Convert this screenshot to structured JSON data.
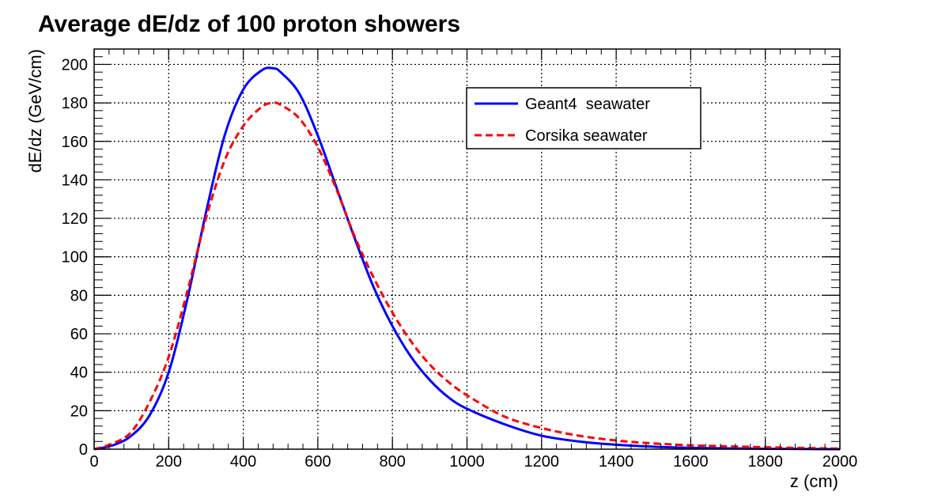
{
  "chart_data": {
    "type": "line",
    "title": "Average dE/dz of 100 proton showers",
    "xlabel": "z (cm)",
    "ylabel": "dE/dz (GeV/cm)",
    "xlim": [
      0,
      2000
    ],
    "ylim": [
      0,
      208
    ],
    "xticks": [
      0,
      200,
      400,
      600,
      800,
      1000,
      1200,
      1400,
      1600,
      1800,
      2000
    ],
    "yticks": [
      0,
      20,
      40,
      60,
      80,
      100,
      120,
      140,
      160,
      180,
      200
    ],
    "grid": true,
    "legend_position": "top-right",
    "series": [
      {
        "name": "Geant4  seawater",
        "color": "#0000ff",
        "style": "solid",
        "x": [
          0,
          50,
          100,
          150,
          200,
          250,
          300,
          350,
          400,
          450,
          480,
          500,
          550,
          600,
          650,
          700,
          750,
          800,
          850,
          900,
          950,
          1000,
          1100,
          1200,
          1300,
          1400,
          1500,
          1600,
          1700,
          1800,
          1900,
          2000
        ],
        "y": [
          0,
          2,
          7,
          18,
          40,
          78,
          123,
          163,
          187,
          197,
          198,
          196,
          185,
          163,
          136,
          109,
          84,
          64,
          48,
          36,
          27,
          21,
          13,
          7,
          4,
          2.3,
          1.3,
          0.7,
          0.4,
          0.2,
          0.1,
          0
        ]
      },
      {
        "name": "Corsika seawater",
        "color": "#ff0000",
        "style": "dashed",
        "x": [
          0,
          50,
          100,
          150,
          200,
          250,
          300,
          350,
          400,
          450,
          480,
          500,
          550,
          600,
          650,
          700,
          750,
          800,
          850,
          900,
          950,
          1000,
          1100,
          1200,
          1300,
          1400,
          1500,
          1600,
          1700,
          1800,
          1900,
          2000
        ],
        "y": [
          0,
          3,
          9,
          25,
          48,
          82,
          120,
          150,
          168,
          178,
          180,
          179,
          172,
          157,
          135,
          110,
          89,
          71,
          56,
          44,
          35,
          28,
          17,
          11,
          7,
          4.5,
          3,
          2,
          1.5,
          1,
          0.6,
          0.3
        ]
      }
    ]
  }
}
